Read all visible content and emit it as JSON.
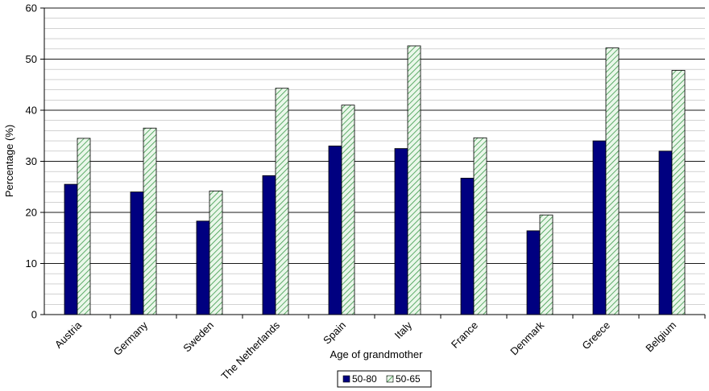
{
  "chart_data": {
    "type": "bar",
    "categories": [
      "Austria",
      "Germany",
      "Sweden",
      "The Netherlands",
      "Spain",
      "Italy",
      "France",
      "Denmark",
      "Greece",
      "Belgium"
    ],
    "series": [
      {
        "name": "50-80",
        "values": [
          25.5,
          24.0,
          18.3,
          27.2,
          33.0,
          32.5,
          26.7,
          16.4,
          34.0,
          32.0
        ],
        "color": "#000080",
        "pattern": "solid"
      },
      {
        "name": "50-65",
        "values": [
          34.5,
          36.5,
          24.2,
          44.3,
          41.0,
          52.6,
          34.6,
          19.5,
          52.2,
          47.8
        ],
        "color": "#c6efce",
        "pattern": "diagonal-hatch"
      }
    ],
    "title": "",
    "xlabel": "Age of grandmother",
    "ylabel": "Percentage  (%)",
    "ylim": [
      0,
      60
    ],
    "yticks": [
      0,
      10,
      20,
      30,
      40,
      50,
      60
    ],
    "grid": "horizontal major and minor",
    "legend": "bottom-center"
  }
}
